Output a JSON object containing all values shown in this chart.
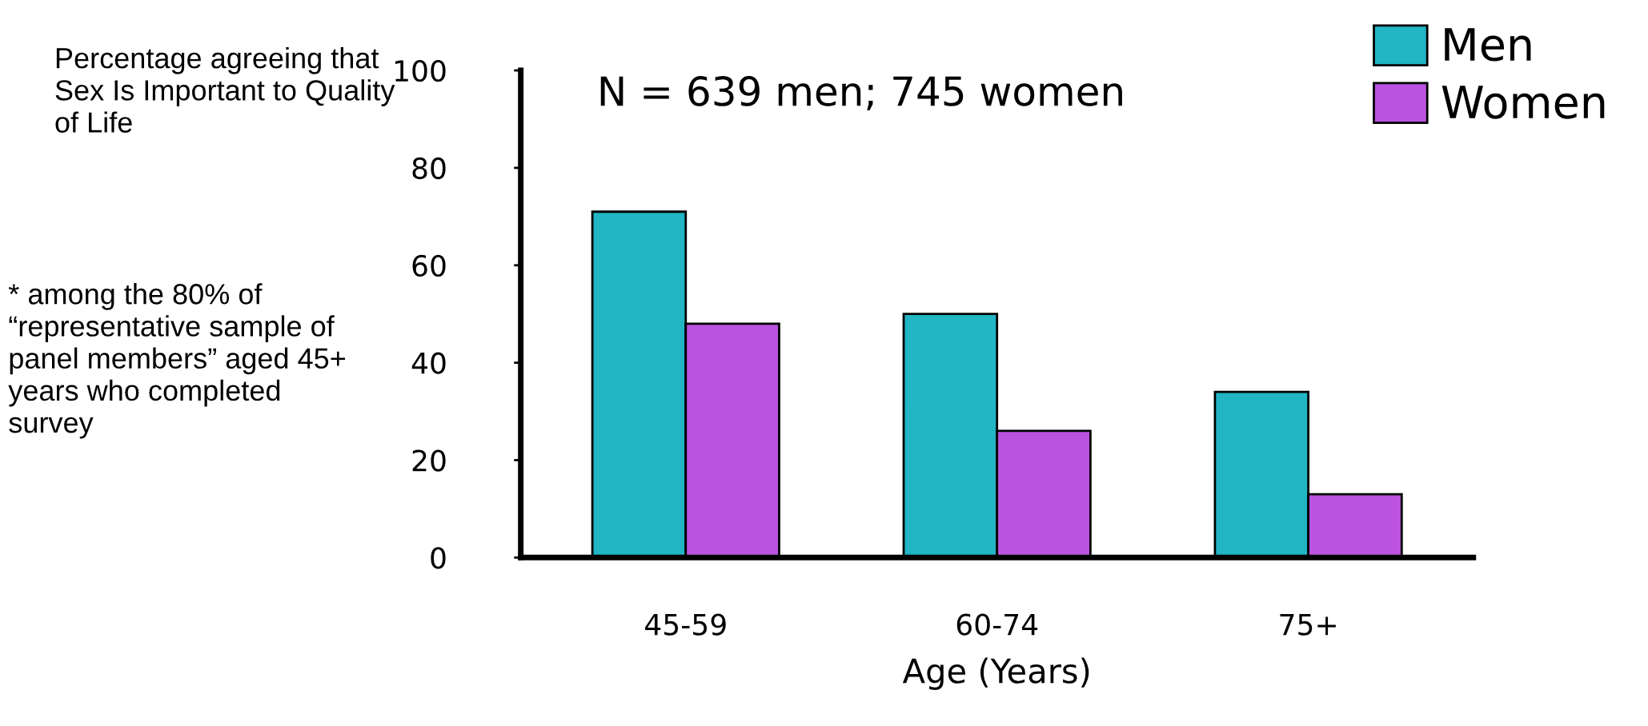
{
  "chart_data": {
    "type": "bar",
    "title": "N = 639 men; 745 women",
    "xlabel": "Age (Years)",
    "ylabel": "Percentage agreeing that Sex Is Important to Quality of Life",
    "annotations": [
      "* among the 80% of “representative sample of panel members” aged 45+ years who completed survey"
    ],
    "categories": [
      "45-59",
      "60-74",
      "75+"
    ],
    "series": [
      {
        "name": "Men",
        "color": "#22b5c4",
        "values": [
          71,
          50,
          34
        ]
      },
      {
        "name": "Women",
        "color": "#bb53e0",
        "values": [
          48,
          26,
          13
        ]
      }
    ],
    "ylim": [
      0,
      100
    ],
    "yticks": [
      0,
      20,
      40,
      60,
      80,
      100
    ],
    "grid": false,
    "legend": "top right"
  }
}
